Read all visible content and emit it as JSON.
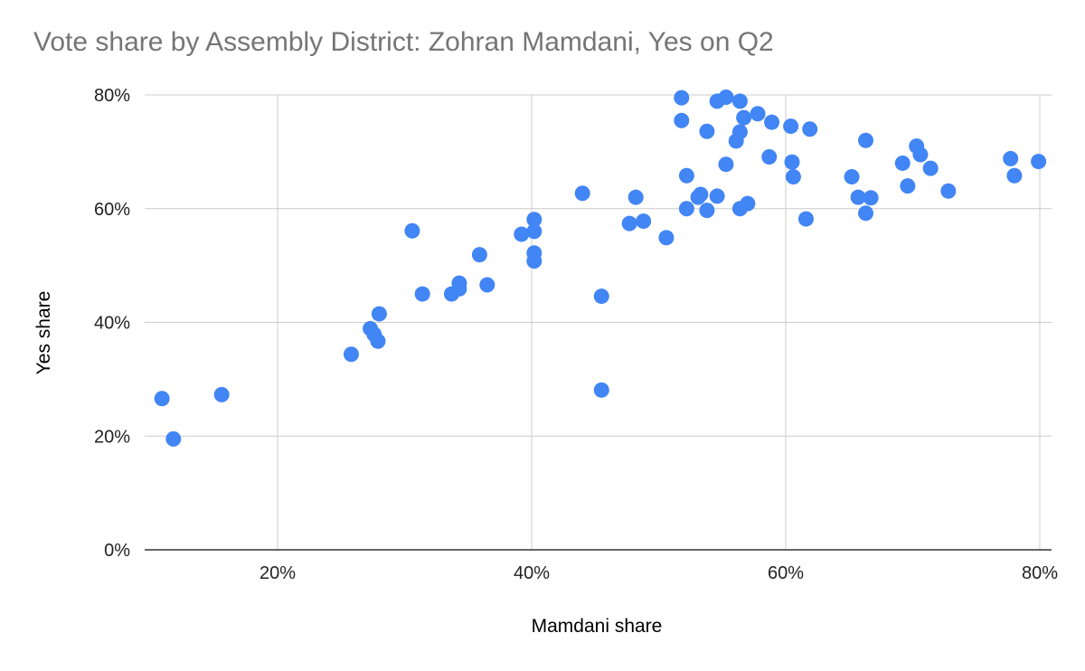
{
  "chart_data": {
    "type": "scatter",
    "title": "Vote share by Assembly District: Zohran Mamdani, Yes on Q2",
    "xlabel": "Mamdani share",
    "ylabel": "Yes share",
    "xlim": [
      0.1,
      0.8
    ],
    "ylim": [
      0.0,
      0.8
    ],
    "x_ticks": [
      0.2,
      0.4,
      0.6,
      0.8
    ],
    "x_tick_labels": [
      "20%",
      "40%",
      "60%",
      "80%"
    ],
    "y_ticks": [
      0.0,
      0.2,
      0.4,
      0.6,
      0.8
    ],
    "y_tick_labels": [
      "0%",
      "20%",
      "40%",
      "60%",
      "80%"
    ],
    "grid": true,
    "legend": "none",
    "point_color": "#4285f4",
    "points": [
      {
        "x": 0.109,
        "y": 0.266
      },
      {
        "x": 0.118,
        "y": 0.195
      },
      {
        "x": 0.156,
        "y": 0.273
      },
      {
        "x": 0.258,
        "y": 0.344
      },
      {
        "x": 0.273,
        "y": 0.389
      },
      {
        "x": 0.276,
        "y": 0.379
      },
      {
        "x": 0.279,
        "y": 0.367
      },
      {
        "x": 0.28,
        "y": 0.415
      },
      {
        "x": 0.306,
        "y": 0.561
      },
      {
        "x": 0.314,
        "y": 0.45
      },
      {
        "x": 0.337,
        "y": 0.45
      },
      {
        "x": 0.343,
        "y": 0.459
      },
      {
        "x": 0.343,
        "y": 0.469
      },
      {
        "x": 0.365,
        "y": 0.466
      },
      {
        "x": 0.359,
        "y": 0.519
      },
      {
        "x": 0.392,
        "y": 0.555
      },
      {
        "x": 0.402,
        "y": 0.56
      },
      {
        "x": 0.402,
        "y": 0.581
      },
      {
        "x": 0.402,
        "y": 0.522
      },
      {
        "x": 0.402,
        "y": 0.508
      },
      {
        "x": 0.44,
        "y": 0.627
      },
      {
        "x": 0.455,
        "y": 0.446
      },
      {
        "x": 0.455,
        "y": 0.281
      },
      {
        "x": 0.477,
        "y": 0.574
      },
      {
        "x": 0.482,
        "y": 0.62
      },
      {
        "x": 0.488,
        "y": 0.578
      },
      {
        "x": 0.506,
        "y": 0.549
      },
      {
        "x": 0.518,
        "y": 0.795
      },
      {
        "x": 0.518,
        "y": 0.755
      },
      {
        "x": 0.522,
        "y": 0.658
      },
      {
        "x": 0.522,
        "y": 0.6
      },
      {
        "x": 0.531,
        "y": 0.62
      },
      {
        "x": 0.533,
        "y": 0.625
      },
      {
        "x": 0.538,
        "y": 0.597
      },
      {
        "x": 0.538,
        "y": 0.736
      },
      {
        "x": 0.546,
        "y": 0.622
      },
      {
        "x": 0.546,
        "y": 0.789
      },
      {
        "x": 0.553,
        "y": 0.796
      },
      {
        "x": 0.553,
        "y": 0.678
      },
      {
        "x": 0.561,
        "y": 0.719
      },
      {
        "x": 0.564,
        "y": 0.735
      },
      {
        "x": 0.564,
        "y": 0.6
      },
      {
        "x": 0.564,
        "y": 0.789
      },
      {
        "x": 0.567,
        "y": 0.76
      },
      {
        "x": 0.57,
        "y": 0.609
      },
      {
        "x": 0.578,
        "y": 0.767
      },
      {
        "x": 0.587,
        "y": 0.691
      },
      {
        "x": 0.589,
        "y": 0.752
      },
      {
        "x": 0.604,
        "y": 0.745
      },
      {
        "x": 0.605,
        "y": 0.682
      },
      {
        "x": 0.606,
        "y": 0.656
      },
      {
        "x": 0.616,
        "y": 0.582
      },
      {
        "x": 0.619,
        "y": 0.74
      },
      {
        "x": 0.652,
        "y": 0.656
      },
      {
        "x": 0.657,
        "y": 0.62
      },
      {
        "x": 0.663,
        "y": 0.72
      },
      {
        "x": 0.663,
        "y": 0.592
      },
      {
        "x": 0.667,
        "y": 0.619
      },
      {
        "x": 0.692,
        "y": 0.68
      },
      {
        "x": 0.696,
        "y": 0.64
      },
      {
        "x": 0.703,
        "y": 0.71
      },
      {
        "x": 0.706,
        "y": 0.695
      },
      {
        "x": 0.714,
        "y": 0.671
      },
      {
        "x": 0.728,
        "y": 0.631
      },
      {
        "x": 0.777,
        "y": 0.688
      },
      {
        "x": 0.78,
        "y": 0.658
      },
      {
        "x": 0.799,
        "y": 0.683
      }
    ]
  }
}
